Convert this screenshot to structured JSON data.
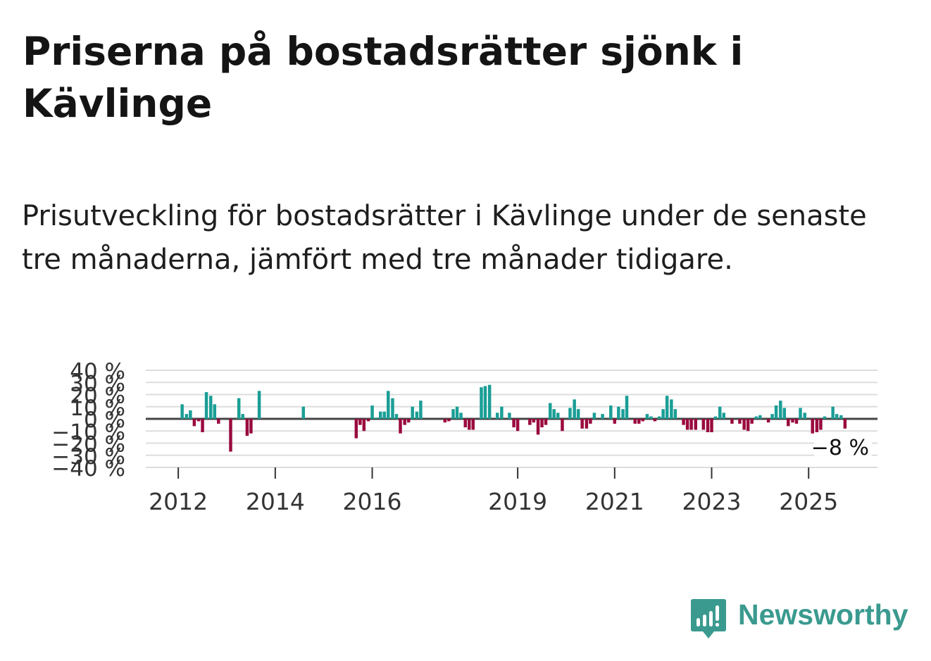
{
  "title": "Priserna på bostadsrätter sjönk i Kävlinge",
  "subtitle": "Prisutveckling för bostadsrätter i Kävlinge under de senaste tre månaderna, jämfört med tre månader tidigare.",
  "brand": {
    "name": "Newsworthy",
    "color": "#3a9a8f"
  },
  "colors": {
    "positive": "#1a9e96",
    "negative": "#9a0a3e",
    "grid": "#dddddd",
    "zero_line": "#444444"
  },
  "chart_data": {
    "type": "bar",
    "title": "Prisutveckling för bostadsrätter i Kävlinge",
    "xlabel": "",
    "ylabel": "",
    "ylim": [
      -40,
      40
    ],
    "y_ticks": [
      {
        "value": 40,
        "label": "40 %"
      },
      {
        "value": 30,
        "label": "30 %"
      },
      {
        "value": 20,
        "label": "20 %"
      },
      {
        "value": 10,
        "label": "10 %"
      },
      {
        "value": 0,
        "label": "0 %"
      },
      {
        "value": -10,
        "label": "−10 %"
      },
      {
        "value": -20,
        "label": "−20 %"
      },
      {
        "value": -30,
        "label": "−30 %"
      },
      {
        "value": -40,
        "label": "−40 %"
      }
    ],
    "x_ticks": [
      {
        "value": 2012,
        "label": "2012"
      },
      {
        "value": 2014,
        "label": "2014"
      },
      {
        "value": 2016,
        "label": "2016"
      },
      {
        "value": 2019,
        "label": "2019"
      },
      {
        "value": 2021,
        "label": "2021"
      },
      {
        "value": 2023,
        "label": "2023"
      },
      {
        "value": 2025,
        "label": "2025"
      }
    ],
    "x_range": [
      2011.33,
      2026.42
    ],
    "last_value_label": "−8 %",
    "points": [
      {
        "t": 2012.08,
        "v": 12
      },
      {
        "t": 2012.17,
        "v": 4
      },
      {
        "t": 2012.25,
        "v": 7
      },
      {
        "t": 2012.33,
        "v": -6
      },
      {
        "t": 2012.42,
        "v": -2
      },
      {
        "t": 2012.5,
        "v": -11
      },
      {
        "t": 2012.58,
        "v": 22
      },
      {
        "t": 2012.67,
        "v": 19
      },
      {
        "t": 2012.75,
        "v": 12
      },
      {
        "t": 2012.83,
        "v": -4
      },
      {
        "t": 2013.08,
        "v": -27
      },
      {
        "t": 2013.25,
        "v": 17
      },
      {
        "t": 2013.33,
        "v": 4
      },
      {
        "t": 2013.42,
        "v": -14
      },
      {
        "t": 2013.5,
        "v": -12
      },
      {
        "t": 2013.67,
        "v": 23
      },
      {
        "t": 2014.58,
        "v": 10
      },
      {
        "t": 2015.67,
        "v": -16
      },
      {
        "t": 2015.75,
        "v": -5
      },
      {
        "t": 2015.83,
        "v": -10
      },
      {
        "t": 2015.92,
        "v": -2
      },
      {
        "t": 2016.0,
        "v": 11
      },
      {
        "t": 2016.08,
        "v": 1
      },
      {
        "t": 2016.17,
        "v": 6
      },
      {
        "t": 2016.25,
        "v": 6
      },
      {
        "t": 2016.33,
        "v": 23
      },
      {
        "t": 2016.42,
        "v": 17
      },
      {
        "t": 2016.5,
        "v": 4
      },
      {
        "t": 2016.58,
        "v": -12
      },
      {
        "t": 2016.67,
        "v": -5
      },
      {
        "t": 2016.75,
        "v": -3
      },
      {
        "t": 2016.83,
        "v": 10
      },
      {
        "t": 2016.92,
        "v": 6
      },
      {
        "t": 2017.0,
        "v": 15
      },
      {
        "t": 2017.5,
        "v": -3
      },
      {
        "t": 2017.58,
        "v": -2
      },
      {
        "t": 2017.67,
        "v": 8
      },
      {
        "t": 2017.75,
        "v": 10
      },
      {
        "t": 2017.83,
        "v": 5
      },
      {
        "t": 2017.92,
        "v": -7
      },
      {
        "t": 2018.0,
        "v": -9
      },
      {
        "t": 2018.08,
        "v": -9
      },
      {
        "t": 2018.25,
        "v": 26
      },
      {
        "t": 2018.33,
        "v": 27
      },
      {
        "t": 2018.42,
        "v": 28
      },
      {
        "t": 2018.58,
        "v": 5
      },
      {
        "t": 2018.67,
        "v": 10
      },
      {
        "t": 2018.83,
        "v": 5
      },
      {
        "t": 2018.92,
        "v": -7
      },
      {
        "t": 2019.0,
        "v": -10
      },
      {
        "t": 2019.25,
        "v": -5
      },
      {
        "t": 2019.33,
        "v": -3
      },
      {
        "t": 2019.42,
        "v": -13
      },
      {
        "t": 2019.5,
        "v": -7
      },
      {
        "t": 2019.58,
        "v": -5
      },
      {
        "t": 2019.67,
        "v": 13
      },
      {
        "t": 2019.75,
        "v": 8
      },
      {
        "t": 2019.83,
        "v": 5
      },
      {
        "t": 2019.92,
        "v": -10
      },
      {
        "t": 2020.08,
        "v": 9
      },
      {
        "t": 2020.17,
        "v": 16
      },
      {
        "t": 2020.25,
        "v": 8
      },
      {
        "t": 2020.33,
        "v": -8
      },
      {
        "t": 2020.42,
        "v": -8
      },
      {
        "t": 2020.5,
        "v": -4
      },
      {
        "t": 2020.58,
        "v": 5
      },
      {
        "t": 2020.75,
        "v": 4
      },
      {
        "t": 2020.92,
        "v": 11
      },
      {
        "t": 2021.0,
        "v": -4
      },
      {
        "t": 2021.08,
        "v": 10
      },
      {
        "t": 2021.17,
        "v": 8
      },
      {
        "t": 2021.25,
        "v": 19
      },
      {
        "t": 2021.42,
        "v": -4
      },
      {
        "t": 2021.5,
        "v": -4
      },
      {
        "t": 2021.58,
        "v": -2
      },
      {
        "t": 2021.67,
        "v": 4
      },
      {
        "t": 2021.75,
        "v": 2
      },
      {
        "t": 2021.83,
        "v": -2
      },
      {
        "t": 2021.92,
        "v": 2
      },
      {
        "t": 2022.0,
        "v": 8
      },
      {
        "t": 2022.08,
        "v": 19
      },
      {
        "t": 2022.17,
        "v": 16
      },
      {
        "t": 2022.25,
        "v": 8
      },
      {
        "t": 2022.42,
        "v": -5
      },
      {
        "t": 2022.5,
        "v": -9
      },
      {
        "t": 2022.58,
        "v": -9
      },
      {
        "t": 2022.67,
        "v": -9
      },
      {
        "t": 2022.83,
        "v": -9
      },
      {
        "t": 2022.92,
        "v": -11
      },
      {
        "t": 2023.0,
        "v": -11
      },
      {
        "t": 2023.08,
        "v": 2
      },
      {
        "t": 2023.17,
        "v": 10
      },
      {
        "t": 2023.25,
        "v": 5
      },
      {
        "t": 2023.42,
        "v": -4
      },
      {
        "t": 2023.58,
        "v": -4
      },
      {
        "t": 2023.67,
        "v": -9
      },
      {
        "t": 2023.75,
        "v": -10
      },
      {
        "t": 2023.83,
        "v": -4
      },
      {
        "t": 2023.92,
        "v": 2
      },
      {
        "t": 2024.0,
        "v": 3
      },
      {
        "t": 2024.17,
        "v": -3
      },
      {
        "t": 2024.25,
        "v": 4
      },
      {
        "t": 2024.33,
        "v": 11
      },
      {
        "t": 2024.42,
        "v": 15
      },
      {
        "t": 2024.5,
        "v": 9
      },
      {
        "t": 2024.58,
        "v": -6
      },
      {
        "t": 2024.67,
        "v": -3
      },
      {
        "t": 2024.75,
        "v": -4
      },
      {
        "t": 2024.83,
        "v": 9
      },
      {
        "t": 2024.92,
        "v": 5
      },
      {
        "t": 2025.08,
        "v": -12
      },
      {
        "t": 2025.17,
        "v": -11
      },
      {
        "t": 2025.25,
        "v": -9
      },
      {
        "t": 2025.33,
        "v": 2
      },
      {
        "t": 2025.5,
        "v": 10
      },
      {
        "t": 2025.58,
        "v": 4
      },
      {
        "t": 2025.67,
        "v": 3
      },
      {
        "t": 2025.75,
        "v": -8
      }
    ]
  }
}
